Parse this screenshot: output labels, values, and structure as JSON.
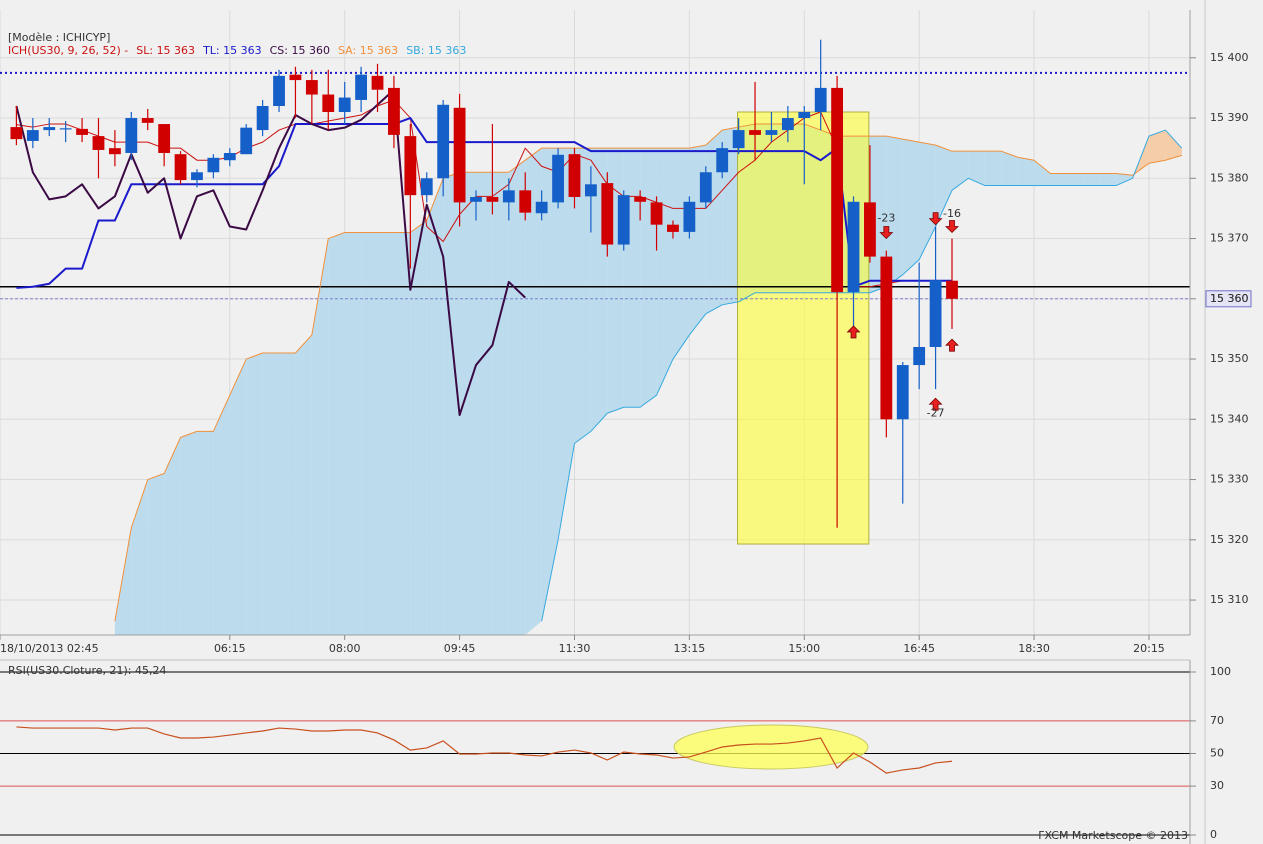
{
  "chart_data": [
    {
      "type": "candlestick",
      "title": "[Modèle : ICHICYP]",
      "subtitle": "ICH(US30, 9, 26, 52) -",
      "x": [
        180,
        195,
        210,
        225,
        240,
        255,
        270,
        285,
        300,
        315,
        330,
        345,
        360,
        375,
        390,
        405,
        420,
        435,
        450,
        465,
        480,
        495,
        510,
        525,
        540,
        555,
        570,
        585,
        600,
        615,
        630,
        645,
        660,
        675,
        690,
        705,
        720,
        735,
        750,
        765,
        780,
        795,
        810,
        825,
        840,
        855,
        870,
        885,
        900,
        915,
        930,
        945,
        960,
        975,
        990,
        1005,
        1020,
        1035,
        1050,
        1065,
        1080,
        1095,
        1110,
        1125,
        1140,
        1155,
        1170,
        1185,
        1200,
        1215,
        1230,
        1245
      ],
      "open": [
        15388.5,
        15386.2,
        15388,
        15388.2,
        15388.2,
        15387,
        15385,
        15384.2,
        15390,
        15389,
        15384,
        15379.7,
        15381,
        15383,
        15384,
        15388,
        15392,
        15397.2,
        15396.3,
        15393.9,
        15391,
        15393,
        15397,
        15395,
        15387,
        15377.2,
        15380,
        15391.7,
        15376.1,
        15376.9,
        15376,
        15378,
        15374.2,
        15376,
        15384,
        15377,
        15379.2,
        15369,
        15376.9,
        15376,
        15372.3,
        15371.1,
        15376,
        15381,
        15385,
        15388,
        15387.2,
        15388,
        15390,
        15391,
        15395,
        15361.1,
        15376,
        15367,
        15340,
        15349,
        15352,
        15363,
        null,
        null,
        null,
        null,
        null,
        null,
        null,
        null,
        null,
        null,
        null,
        null,
        null,
        null
      ],
      "high": [
        15392,
        15390,
        15390,
        15389.5,
        15390,
        15390,
        15388,
        15391,
        15391.5,
        15389,
        15384.5,
        15381.5,
        15384,
        15385,
        15389,
        15393,
        15398,
        15398.5,
        15398,
        15398,
        15396,
        15398.5,
        15399,
        15397,
        15389,
        15381,
        15393,
        15394,
        15378,
        15389,
        15380,
        15381,
        15378,
        15385,
        15385,
        15382,
        15381,
        15378,
        15378,
        15377,
        15373,
        15377,
        15382,
        15386,
        15390,
        15396,
        15391,
        15392,
        15392,
        15403,
        15397,
        15377,
        15385.5,
        15368,
        15349.5,
        15366,
        15372,
        15370,
        null,
        null,
        null,
        null,
        null,
        null,
        null,
        null,
        null,
        null,
        null,
        null,
        null,
        null
      ],
      "low": [
        15385.5,
        15385,
        15387,
        15386,
        15386,
        15380,
        15382,
        15383,
        15388,
        15382,
        15379,
        15378.5,
        15380,
        15382,
        15384,
        15387,
        15391,
        15390,
        15389,
        15388,
        15389,
        15391,
        15391,
        15385,
        15365,
        15376,
        15377,
        15372,
        15373,
        15374,
        15373,
        15373,
        15373,
        15375,
        15375,
        15371,
        15367,
        15368,
        15373,
        15368,
        15370,
        15370,
        15375,
        15380,
        15384,
        15383,
        15386,
        15386,
        15379,
        15388,
        15322,
        15355,
        15366,
        15337,
        15326,
        15345,
        15345,
        15355,
        null,
        null,
        null,
        null,
        null,
        null,
        null,
        null,
        null,
        null,
        null,
        null,
        null,
        null
      ],
      "close": [
        15386.5,
        15388,
        15388.5,
        15388.3,
        15387.2,
        15384.7,
        15384,
        15390,
        15389.2,
        15384.2,
        15379.7,
        15381,
        15383.4,
        15384.2,
        15388.4,
        15392,
        15397,
        15396.3,
        15393.9,
        15391,
        15393.4,
        15397.2,
        15394.7,
        15387.2,
        15377.2,
        15380,
        15392.2,
        15376,
        15376.9,
        15376.1,
        15378,
        15374.3,
        15376.1,
        15383.9,
        15376.9,
        15379,
        15369,
        15377.2,
        15376.1,
        15372.3,
        15371.1,
        15376.1,
        15381,
        15385,
        15388,
        15387.2,
        15388,
        15390,
        15391,
        15395,
        15361.1,
        15376.1,
        15367,
        15340,
        15349,
        15352,
        15363.1,
        15360,
        null,
        null,
        null,
        null,
        null,
        null,
        null,
        null,
        null,
        null,
        null,
        null,
        null,
        null
      ],
      "up_color": "#1560c8",
      "down_color": "#d00000",
      "series": [
        {
          "name": "SA: 15 363",
          "role": "senkou-a",
          "color": "#f0903a",
          "width": 1,
          "values": [
            null,
            null,
            null,
            null,
            null,
            null,
            15306.5,
            15322,
            15330,
            15331,
            15337,
            15338,
            15338,
            15344,
            15350,
            15351,
            15351,
            15351,
            15354,
            15370,
            15371,
            15371,
            15371,
            15371,
            15371,
            15373,
            15380,
            15381,
            15381,
            15381,
            15381,
            15383,
            15385,
            15385,
            15385,
            15385,
            15385,
            15385,
            15385,
            15385,
            15385,
            15385,
            15385.5,
            15388,
            15388.5,
            15389,
            15389,
            15389,
            15389,
            15388,
            15387,
            15387,
            15387,
            15387,
            15386.5,
            15386,
            15385.5,
            15384.5,
            15384.5,
            15384.5,
            15384.5,
            15383.5,
            15383,
            15380.8,
            15380.8,
            15380.8,
            15380.8,
            15380.8,
            15380.5,
            15382.5,
            15383,
            15383.8
          ]
        },
        {
          "name": "SB: 15 363",
          "role": "senkou-b",
          "color": "#36a9df",
          "width": 1,
          "values": [
            null,
            null,
            null,
            null,
            null,
            null,
            null,
            null,
            null,
            null,
            null,
            null,
            null,
            null,
            null,
            null,
            null,
            null,
            null,
            null,
            null,
            null,
            null,
            null,
            null,
            null,
            null,
            null,
            null,
            null,
            null,
            null,
            15306.5,
            15320,
            15336,
            15338,
            15341,
            15342,
            15342,
            15344,
            15350,
            15354,
            15357.5,
            15359,
            15359.5,
            15361,
            15361,
            15361,
            15361,
            15361,
            15361,
            15361,
            15361,
            15362,
            15364,
            15366.5,
            15372,
            15378,
            15380,
            15378.8,
            15378.8,
            15378.8,
            15378.8,
            15378.8,
            15378.8,
            15378.8,
            15378.8,
            15378.8,
            15380,
            15387,
            15388,
            15385
          ]
        },
        {
          "name": "SL: 15 363",
          "color": "#cc1111",
          "width": 1,
          "values": [
            15388.9,
            15388.5,
            15389,
            15389,
            15388,
            15387,
            15386,
            15386,
            15386,
            15385,
            15385,
            15383,
            15383,
            15383.5,
            15385,
            15386,
            15388,
            15389,
            15389,
            15389.5,
            15390,
            15390.5,
            15392,
            15393,
            15390,
            15372,
            15369.5,
            15374,
            15377,
            15377,
            15379,
            15385,
            15382,
            15381,
            15384,
            15383,
            15379,
            15377,
            15377,
            15376,
            15375,
            15375,
            15375,
            15378,
            15381,
            15383,
            15386,
            15388,
            15390,
            15391,
            15385,
            15362,
            15362,
            15362.5,
            15363,
            15363,
            15363,
            15363,
            null,
            null,
            null,
            null,
            null,
            null,
            null,
            null,
            null,
            null,
            null,
            null,
            null,
            null
          ]
        },
        {
          "name": "TL: 15 363",
          "color": "#1a1acc",
          "width": 2,
          "values": [
            15361.8,
            15362,
            15362.5,
            15365,
            15365,
            15373,
            15373,
            15379,
            15379,
            15379,
            15379,
            15379,
            15379,
            15379,
            15379,
            15379,
            15382,
            15389,
            15389,
            15389,
            15389,
            15389,
            15389,
            15389,
            15390,
            15386,
            15386,
            15386,
            15386,
            15386,
            15386,
            15386,
            15386,
            15386,
            15386,
            15384.5,
            15384.5,
            15384.5,
            15384.5,
            15384.5,
            15384.5,
            15384.5,
            15384.5,
            15384.5,
            15384.5,
            15384.5,
            15384.5,
            15384.5,
            15384.5,
            15383,
            15385,
            15362,
            15363,
            15363,
            15363,
            15363,
            15363,
            15363,
            null,
            null,
            null,
            null,
            null,
            null,
            null,
            null,
            null,
            null,
            null,
            null,
            null,
            null
          ]
        },
        {
          "name": "CS: 15 360",
          "color": "#3b0a45",
          "width": 2,
          "values": [
            15392,
            15381,
            15376.5,
            15377,
            15379,
            15375,
            15377,
            15384,
            15377.6,
            15380,
            15370,
            15377,
            15378,
            15372,
            15371.5,
            15378,
            15385,
            15390.5,
            15389,
            15388,
            15388.4,
            15389.7,
            15392.2,
            15394.7,
            15361.5,
            15375.6,
            15367,
            15340.7,
            15349,
            15352.3,
            15362.8,
            15360.2,
            null,
            null,
            null,
            null,
            null,
            null,
            null,
            null,
            null,
            null,
            null,
            null,
            null,
            null,
            null,
            null,
            null,
            null,
            null,
            null,
            null,
            null,
            null,
            null,
            null,
            null,
            null,
            null,
            null,
            null,
            null,
            null,
            null,
            null,
            null,
            null,
            null,
            null,
            null,
            null
          ]
        }
      ],
      "cloud_colors": [
        "#bcdcee",
        "#f5cda9"
      ],
      "xlim": [
        165,
        1252.5
      ],
      "ylim": [
        15304.2,
        15407.1
      ],
      "xticks": [
        {
          "value": 165,
          "label": "18/10/2013 02:45"
        },
        {
          "value": 375,
          "label": "06:15"
        },
        {
          "value": 480,
          "label": "08:00"
        },
        {
          "value": 585,
          "label": "09:45"
        },
        {
          "value": 690,
          "label": "11:30"
        },
        {
          "value": 795,
          "label": "13:15"
        },
        {
          "value": 900,
          "label": "15:00"
        },
        {
          "value": 1005,
          "label": "16:45"
        },
        {
          "value": 1110,
          "label": "18:30"
        },
        {
          "value": 1215,
          "label": "20:15"
        }
      ],
      "yticks": [
        {
          "value": 15400,
          "label": "15 400"
        },
        {
          "value": 15390,
          "label": "15 390"
        },
        {
          "value": 15380,
          "label": "15 380"
        },
        {
          "value": 15370,
          "label": "15 370"
        },
        {
          "value": 15360,
          "label": "15 360"
        },
        {
          "value": 15350,
          "label": "15 350"
        },
        {
          "value": 15340,
          "label": "15 340"
        },
        {
          "value": 15330,
          "label": "15 330"
        },
        {
          "value": 15320,
          "label": "15 320"
        },
        {
          "value": 15310,
          "label": "15 310"
        }
      ],
      "grid": true,
      "hlines": [
        {
          "value": 15397.5,
          "color": "#1a1acc",
          "style": "dotted"
        },
        {
          "value": 15362,
          "color": "#000000",
          "style": "solid"
        }
      ],
      "last_price": {
        "value": 15360,
        "label": "15 360",
        "color": "#7070c8"
      },
      "highlight": {
        "x": [
          839,
          959
        ],
        "y": [
          15391,
          15319.3
        ],
        "color": "#ffff33"
      },
      "signals": [
        {
          "x": 945,
          "y": 15354.5,
          "direction": "up"
        },
        {
          "x": 975,
          "y": 15371,
          "direction": "down"
        },
        {
          "x": 1020,
          "y": 15373.3,
          "direction": "down"
        },
        {
          "x": 1035,
          "y": 15372,
          "direction": "down"
        },
        {
          "x": 1020,
          "y": 15342.5,
          "direction": "up"
        },
        {
          "x": 1035,
          "y": 15352.3,
          "direction": "up"
        }
      ],
      "annotations": [
        {
          "text": "-23",
          "x": 975,
          "y": 15373.3
        },
        {
          "text": "-16",
          "x": 1035,
          "y": 15374.1
        },
        {
          "text": "-27",
          "x": 1020,
          "y": 15341
        }
      ]
    },
    {
      "type": "line",
      "title": "RSI(US30.Cloture, 21): 45,24",
      "color": "#c8501e",
      "x": [
        180,
        195,
        210,
        225,
        240,
        255,
        270,
        285,
        300,
        315,
        330,
        345,
        360,
        375,
        390,
        405,
        420,
        435,
        450,
        465,
        480,
        495,
        510,
        525,
        540,
        555,
        570,
        585,
        600,
        615,
        630,
        645,
        660,
        675,
        690,
        705,
        720,
        735,
        750,
        765,
        780,
        795,
        810,
        825,
        840,
        855,
        870,
        885,
        900,
        915,
        930,
        945,
        960,
        975,
        990,
        1005,
        1020,
        1035
      ],
      "values": [
        66.3,
        65.6,
        65.6,
        65.6,
        65.6,
        65.6,
        64.4,
        65.6,
        65.6,
        62,
        59.5,
        59.5,
        60.1,
        61.3,
        62.6,
        63.8,
        65.6,
        65,
        63.8,
        63.8,
        64.4,
        64.4,
        62.6,
        58.3,
        52.1,
        53.4,
        57.7,
        49.7,
        49.7,
        50.3,
        50.3,
        49.1,
        48.5,
        50.9,
        52.1,
        50.3,
        46,
        50.9,
        49.7,
        49.1,
        47.2,
        47.9,
        50.9,
        54,
        55.2,
        55.8,
        55.8,
        56.4,
        57.7,
        59.5,
        41.1,
        50.3,
        44.8,
        38,
        39.9,
        41.1,
        44.2,
        45.24
      ],
      "xlim": [
        165,
        1252.5
      ],
      "ylim": [
        0,
        100
      ],
      "yticks": [
        100,
        70,
        50,
        30,
        0
      ],
      "tick_line_colors": [
        "#000000",
        "#e05050",
        "#000000",
        "#e05050",
        "#000000"
      ]
    }
  ],
  "footer": "FXCM Marketscope © 2013"
}
